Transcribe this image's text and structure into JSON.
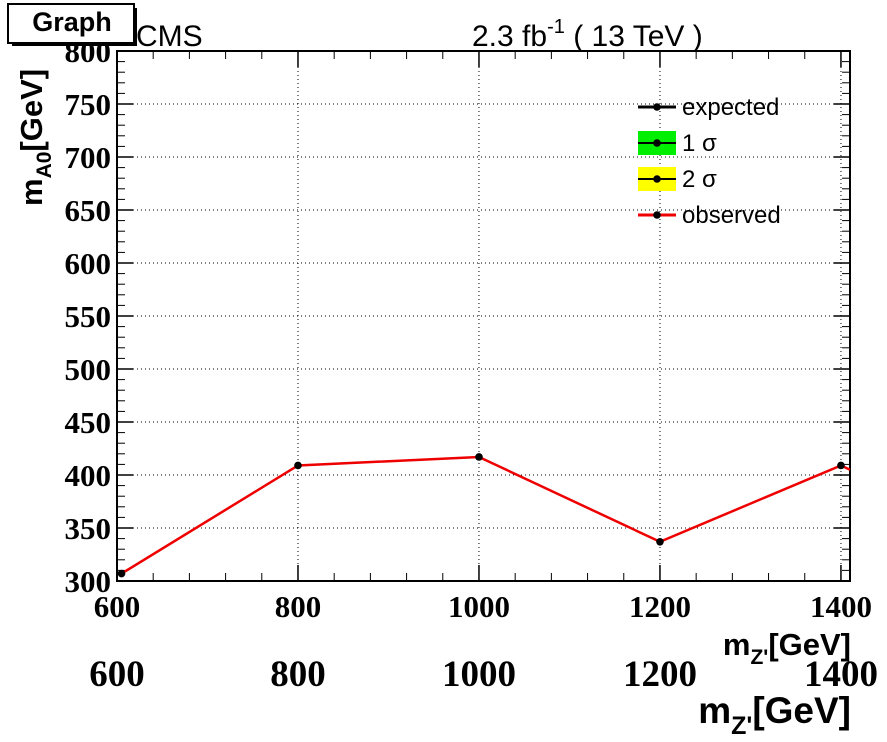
{
  "header": {
    "graph_button": "Graph",
    "experiment": "CMS",
    "lumi_prefix": "2.3 fb",
    "lumi_exponent": "-1",
    "lumi_suffix": "( 13 TeV )"
  },
  "chart_data": {
    "type": "line",
    "title": "",
    "xlabel": "m_{Z'}[GeV]",
    "ylabel": "m_{A0}[GeV]",
    "xlim": [
      600,
      1410
    ],
    "ylim": [
      300,
      800
    ],
    "grid": true,
    "legend_position": "top-right",
    "x_ticks": [
      600,
      800,
      1000,
      1200,
      1400
    ],
    "x_tick_labels": [
      "600",
      "800",
      "1000",
      "1200",
      "1400"
    ],
    "y_ticks": [
      300,
      350,
      400,
      450,
      500,
      550,
      600,
      650,
      700,
      750,
      800
    ],
    "y_tick_labels": [
      "300",
      "350",
      "400",
      "450",
      "500",
      "550",
      "600",
      "650",
      "700",
      "750",
      "800"
    ],
    "legend": [
      {
        "label": "expected",
        "style": "line",
        "color": "#000000"
      },
      {
        "label": "1 σ",
        "style": "band",
        "color": "#00ee00"
      },
      {
        "label": "2 σ",
        "style": "band",
        "color": "#ffff00"
      },
      {
        "label": "observed",
        "style": "line",
        "color": "#ee0000"
      }
    ],
    "series": [
      {
        "name": "observed",
        "color": "#ee0000",
        "x": [
          605,
          800,
          1000,
          1200,
          1400,
          1410
        ],
        "y": [
          307,
          409,
          417,
          337,
          409,
          405
        ],
        "markers": [
          true,
          true,
          true,
          true,
          true,
          false
        ]
      }
    ],
    "ghost_x_tick_labels": [
      "600",
      "800",
      "1000",
      "1200",
      "1400"
    ],
    "ghost_xlabel": "m_{Z'}[GeV]"
  }
}
